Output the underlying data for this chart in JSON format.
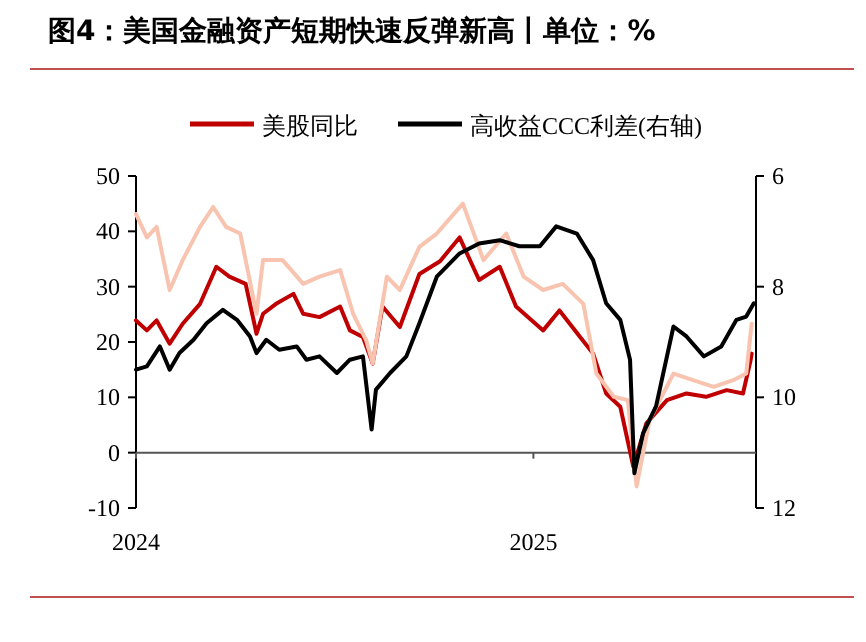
{
  "chart_data": {
    "type": "line",
    "title": "图4：美国金融资产短期快速反弹新高丨单位：%",
    "legend": "top",
    "xlim": [
      "2024-01-01",
      "2025-07-25"
    ],
    "xticks": [
      {
        "value": "2024-01-01",
        "label": "2024"
      },
      {
        "value": "2025-01-01",
        "label": "2025"
      }
    ],
    "ylim": [
      -10,
      50
    ],
    "yticks": [
      -10,
      0,
      10,
      20,
      30,
      40,
      50
    ],
    "y2lim": [
      12,
      6
    ],
    "y2ticks": [
      6,
      8,
      10,
      12
    ],
    "series": [
      {
        "name": "美股同比",
        "color": "#c00000",
        "x": [
          "2024-01-01",
          "2024-01-11",
          "2024-01-20",
          "2024-02-01",
          "2024-02-13",
          "2024-02-29",
          "2024-03-15",
          "2024-03-27",
          "2024-04-11",
          "2024-04-21",
          "2024-04-27",
          "2024-05-09",
          "2024-05-25",
          "2024-06-03",
          "2024-06-18",
          "2024-07-07",
          "2024-07-16",
          "2024-07-28",
          "2024-08-06",
          "2024-08-15",
          "2024-08-31",
          "2024-09-18",
          "2024-10-07",
          "2024-10-25",
          "2024-11-12",
          "2024-12-01",
          "2024-12-16",
          "2025-01-10",
          "2025-01-25",
          "2025-02-13",
          "2025-02-25",
          "2025-03-09",
          "2025-03-22",
          "2025-04-03",
          "2025-04-15",
          "2025-05-04",
          "2025-05-22",
          "2025-06-09",
          "2025-06-28",
          "2025-07-13",
          "2025-07-20",
          "2025-07-21"
        ],
        "values": [
          23.9,
          22.1,
          23.9,
          19.7,
          23.3,
          26.9,
          33.6,
          31.8,
          30.5,
          21.5,
          25.1,
          26.9,
          28.7,
          25.1,
          24.5,
          26.4,
          22.1,
          20.9,
          16.1,
          26.4,
          22.7,
          32.3,
          34.6,
          38.9,
          31.2,
          33.6,
          26.4,
          22.1,
          25.7,
          20.9,
          17.9,
          10.7,
          8.3,
          -2.5,
          5.3,
          9.5,
          10.7,
          10.1,
          11.3,
          10.7,
          16.7,
          17.9
        ]
      },
      {
        "color": "#f8c4b0",
        "x": [
          "2024-01-01",
          "2024-01-11",
          "2024-01-20",
          "2024-02-01",
          "2024-02-13",
          "2024-02-29",
          "2024-03-12",
          "2024-03-24",
          "2024-04-06",
          "2024-04-21",
          "2024-04-27",
          "2024-05-15",
          "2024-06-03",
          "2024-06-18",
          "2024-07-07",
          "2024-07-19",
          "2024-07-31",
          "2024-08-06",
          "2024-08-19",
          "2024-08-31",
          "2024-09-18",
          "2024-10-04",
          "2024-10-28",
          "2024-11-16",
          "2024-12-07",
          "2024-12-23",
          "2025-01-10",
          "2025-01-28",
          "2025-02-16",
          "2025-02-28",
          "2025-03-16",
          "2025-03-29",
          "2025-04-06",
          "2025-04-18",
          "2025-05-10",
          "2025-05-28",
          "2025-06-16",
          "2025-07-04",
          "2025-07-16",
          "2025-07-21"
        ],
        "values": [
          43.1,
          38.9,
          40.8,
          29.4,
          34.8,
          40.8,
          44.4,
          40.8,
          39.6,
          25.1,
          34.8,
          34.8,
          30.5,
          31.8,
          33.0,
          25.1,
          20.3,
          16.1,
          31.8,
          29.4,
          37.2,
          39.6,
          45.0,
          34.8,
          39.6,
          31.8,
          29.4,
          30.5,
          26.9,
          14.3,
          10.1,
          9.5,
          -6.1,
          5.9,
          14.3,
          13.1,
          11.9,
          13.1,
          14.3,
          23.3
        ]
      },
      {
        "name": "高收益CCC利差(右轴)",
        "color": "#000000",
        "axis": "y2",
        "x": [
          "2024-01-01",
          "2024-01-11",
          "2024-01-23",
          "2024-02-01",
          "2024-02-10",
          "2024-02-23",
          "2024-03-06",
          "2024-03-21",
          "2024-04-03",
          "2024-04-15",
          "2024-04-21",
          "2024-04-30",
          "2024-05-12",
          "2024-05-28",
          "2024-06-06",
          "2024-06-18",
          "2024-07-04",
          "2024-07-16",
          "2024-07-28",
          "2024-08-05",
          "2024-08-09",
          "2024-08-22",
          "2024-09-06",
          "2024-09-18",
          "2024-10-04",
          "2024-10-25",
          "2024-11-12",
          "2024-12-01",
          "2024-12-19",
          "2025-01-07",
          "2025-01-22",
          "2025-02-10",
          "2025-02-25",
          "2025-03-09",
          "2025-03-22",
          "2025-03-31",
          "2025-04-04",
          "2025-04-12",
          "2025-04-24",
          "2025-05-10",
          "2025-05-22",
          "2025-06-07",
          "2025-06-23",
          "2025-07-07",
          "2025-07-16",
          "2025-07-23"
        ],
        "values": [
          9.5,
          9.44,
          9.08,
          9.5,
          9.2,
          8.96,
          8.66,
          8.42,
          8.6,
          8.9,
          9.2,
          8.96,
          9.14,
          9.08,
          9.32,
          9.26,
          9.56,
          9.32,
          9.26,
          10.58,
          9.86,
          9.56,
          9.26,
          8.66,
          7.82,
          7.4,
          7.22,
          7.16,
          7.27,
          7.27,
          6.91,
          7.04,
          7.52,
          8.3,
          8.6,
          9.32,
          11.37,
          10.65,
          10.16,
          8.72,
          8.9,
          9.26,
          9.08,
          8.6,
          8.54,
          8.3
        ]
      }
    ]
  }
}
